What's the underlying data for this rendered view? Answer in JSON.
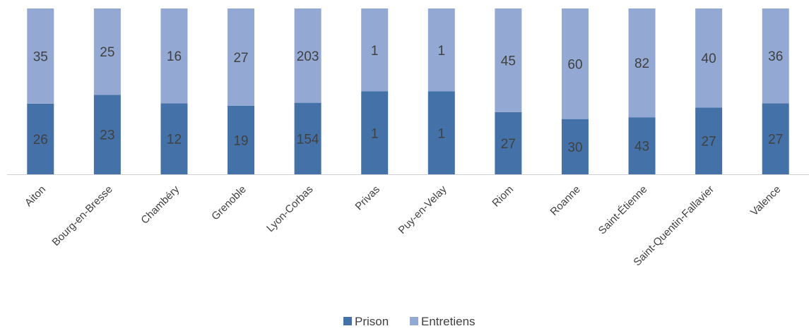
{
  "chart_data": {
    "type": "bar",
    "stacked": "percent",
    "categories": [
      "Aiton",
      "Bourg-en-Bresse",
      "Chambéry",
      "Grenoble",
      "Lyon-Corbas",
      "Privas",
      "Puy-en-Velay",
      "Riom",
      "Roanne",
      "Saint-Étienne",
      "Saint-Quentin-Fallavier",
      "Valence"
    ],
    "series": [
      {
        "name": "Prison",
        "values": [
          26,
          23,
          12,
          19,
          154,
          1,
          1,
          27,
          30,
          43,
          27,
          27
        ],
        "color": "#4472a8"
      },
      {
        "name": "Entretiens",
        "values": [
          35,
          25,
          16,
          27,
          203,
          1,
          1,
          45,
          60,
          82,
          40,
          36
        ],
        "color": "#93a9d3"
      }
    ],
    "data_labels": true,
    "grid": false,
    "legend_position": "bottom"
  }
}
